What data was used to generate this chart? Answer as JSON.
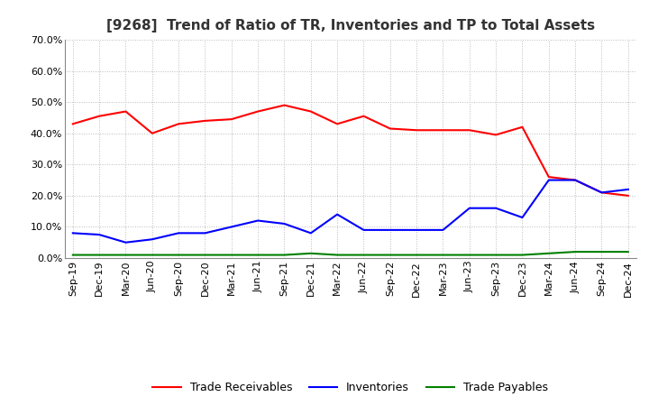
{
  "title": "[9268]  Trend of Ratio of TR, Inventories and TP to Total Assets",
  "labels": [
    "Sep-19",
    "Dec-19",
    "Mar-20",
    "Jun-20",
    "Sep-20",
    "Dec-20",
    "Mar-21",
    "Jun-21",
    "Sep-21",
    "Dec-21",
    "Mar-22",
    "Jun-22",
    "Sep-22",
    "Dec-22",
    "Mar-23",
    "Jun-23",
    "Sep-23",
    "Dec-23",
    "Mar-24",
    "Jun-24",
    "Sep-24",
    "Dec-24"
  ],
  "trade_receivables": [
    0.43,
    0.455,
    0.47,
    0.4,
    0.43,
    0.44,
    0.445,
    0.47,
    0.49,
    0.47,
    0.43,
    0.455,
    0.415,
    0.41,
    0.41,
    0.41,
    0.395,
    0.42,
    0.26,
    0.25,
    0.21,
    0.2
  ],
  "inventories": [
    0.08,
    0.075,
    0.05,
    0.06,
    0.08,
    0.08,
    0.1,
    0.12,
    0.11,
    0.08,
    0.14,
    0.09,
    0.09,
    0.09,
    0.09,
    0.16,
    0.16,
    0.13,
    0.25,
    0.25,
    0.21,
    0.22
  ],
  "trade_payables": [
    0.01,
    0.01,
    0.01,
    0.01,
    0.01,
    0.01,
    0.01,
    0.01,
    0.01,
    0.015,
    0.01,
    0.01,
    0.01,
    0.01,
    0.01,
    0.01,
    0.01,
    0.01,
    0.015,
    0.02,
    0.02,
    0.02
  ],
  "tr_color": "#ff0000",
  "inv_color": "#0000ff",
  "tp_color": "#008000",
  "ylim": [
    0.0,
    0.7
  ],
  "yticks": [
    0.0,
    0.1,
    0.2,
    0.3,
    0.4,
    0.5,
    0.6,
    0.7
  ],
  "bg_color": "#ffffff",
  "plot_bg_color": "#ffffff",
  "grid_color": "#bbbbbb",
  "title_fontsize": 11,
  "tick_fontsize": 8,
  "legend_fontsize": 9
}
